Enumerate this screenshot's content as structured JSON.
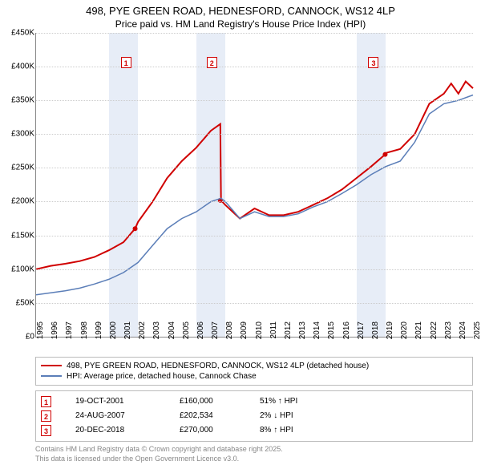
{
  "chart": {
    "title_line1": "498, PYE GREEN ROAD, HEDNESFORD, CANNOCK, WS12 4LP",
    "title_line2": "Price paid vs. HM Land Registry's House Price Index (HPI)",
    "type": "line",
    "background_color": "#ffffff",
    "shaded_band_color": "#e7edf7",
    "grid_color": "#cccccc",
    "axis_color": "#888888",
    "title_fontsize": 13,
    "tick_fontsize": 10,
    "ylim": [
      0,
      450000
    ],
    "ytick_step": 50000,
    "y_ticks": [
      "£0",
      "£50K",
      "£100K",
      "£150K",
      "£200K",
      "£250K",
      "£300K",
      "£350K",
      "£400K",
      "£450K"
    ],
    "x_years": [
      1995,
      1996,
      1997,
      1998,
      1999,
      2000,
      2001,
      2002,
      2003,
      2004,
      2005,
      2006,
      2007,
      2008,
      2009,
      2010,
      2011,
      2012,
      2013,
      2014,
      2015,
      2016,
      2017,
      2018,
      2019,
      2020,
      2021,
      2022,
      2023,
      2024,
      2025
    ],
    "shaded_bands": [
      {
        "start": 2000,
        "end": 2002
      },
      {
        "start": 2006,
        "end": 2008
      },
      {
        "start": 2017,
        "end": 2019
      }
    ],
    "series": [
      {
        "name": "property",
        "label": "498, PYE GREEN ROAD, HEDNESFORD, CANNOCK, WS12 4LP (detached house)",
        "color": "#d00000",
        "line_width": 2,
        "points": [
          [
            1995,
            100000
          ],
          [
            1996,
            105000
          ],
          [
            1997,
            108000
          ],
          [
            1998,
            112000
          ],
          [
            1999,
            118000
          ],
          [
            2000,
            128000
          ],
          [
            2001,
            140000
          ],
          [
            2001.8,
            160000
          ],
          [
            2002,
            170000
          ],
          [
            2003,
            200000
          ],
          [
            2004,
            235000
          ],
          [
            2005,
            260000
          ],
          [
            2006,
            280000
          ],
          [
            2007,
            305000
          ],
          [
            2007.65,
            315000
          ],
          [
            2007.7,
            202000
          ],
          [
            2008,
            195000
          ],
          [
            2009,
            175000
          ],
          [
            2010,
            190000
          ],
          [
            2011,
            180000
          ],
          [
            2012,
            180000
          ],
          [
            2013,
            185000
          ],
          [
            2014,
            195000
          ],
          [
            2015,
            205000
          ],
          [
            2016,
            218000
          ],
          [
            2017,
            235000
          ],
          [
            2018,
            252000
          ],
          [
            2018.97,
            270000
          ],
          [
            2019,
            272000
          ],
          [
            2020,
            278000
          ],
          [
            2021,
            300000
          ],
          [
            2022,
            345000
          ],
          [
            2023,
            360000
          ],
          [
            2023.5,
            375000
          ],
          [
            2024,
            360000
          ],
          [
            2024.5,
            378000
          ],
          [
            2025,
            368000
          ]
        ],
        "sale_dots": [
          {
            "x": 2001.8,
            "y": 160000
          },
          {
            "x": 2007.65,
            "y": 202000
          },
          {
            "x": 2018.97,
            "y": 270000
          }
        ]
      },
      {
        "name": "hpi",
        "label": "HPI: Average price, detached house, Cannock Chase",
        "color": "#5b7eb8",
        "line_width": 1.5,
        "points": [
          [
            1995,
            62000
          ],
          [
            1996,
            65000
          ],
          [
            1997,
            68000
          ],
          [
            1998,
            72000
          ],
          [
            1999,
            78000
          ],
          [
            2000,
            85000
          ],
          [
            2001,
            95000
          ],
          [
            2002,
            110000
          ],
          [
            2003,
            135000
          ],
          [
            2004,
            160000
          ],
          [
            2005,
            175000
          ],
          [
            2006,
            185000
          ],
          [
            2007,
            200000
          ],
          [
            2007.7,
            205000
          ],
          [
            2008,
            200000
          ],
          [
            2009,
            175000
          ],
          [
            2010,
            185000
          ],
          [
            2011,
            178000
          ],
          [
            2012,
            178000
          ],
          [
            2013,
            182000
          ],
          [
            2014,
            192000
          ],
          [
            2015,
            200000
          ],
          [
            2016,
            212000
          ],
          [
            2017,
            225000
          ],
          [
            2018,
            240000
          ],
          [
            2019,
            252000
          ],
          [
            2020,
            260000
          ],
          [
            2021,
            288000
          ],
          [
            2022,
            330000
          ],
          [
            2023,
            345000
          ],
          [
            2024,
            350000
          ],
          [
            2025,
            358000
          ]
        ]
      }
    ],
    "markers": [
      {
        "num": "1",
        "year": 2001.2,
        "label_y": 30
      },
      {
        "num": "2",
        "year": 2007.1,
        "label_y": 30
      },
      {
        "num": "3",
        "year": 2018.2,
        "label_y": 30
      }
    ]
  },
  "legend": {
    "series1": "498, PYE GREEN ROAD, HEDNESFORD, CANNOCK, WS12 4LP (detached house)",
    "series2": "HPI: Average price, detached house, Cannock Chase"
  },
  "marker_table": {
    "rows": [
      {
        "num": "1",
        "date": "19-OCT-2001",
        "price": "£160,000",
        "change": "51% ↑ HPI"
      },
      {
        "num": "2",
        "date": "24-AUG-2007",
        "price": "£202,534",
        "change": "2% ↓ HPI"
      },
      {
        "num": "3",
        "date": "20-DEC-2018",
        "price": "£270,000",
        "change": "8% ↑ HPI"
      }
    ]
  },
  "attribution": {
    "line1": "Contains HM Land Registry data © Crown copyright and database right 2025.",
    "line2": "This data is licensed under the Open Government Licence v3.0."
  }
}
